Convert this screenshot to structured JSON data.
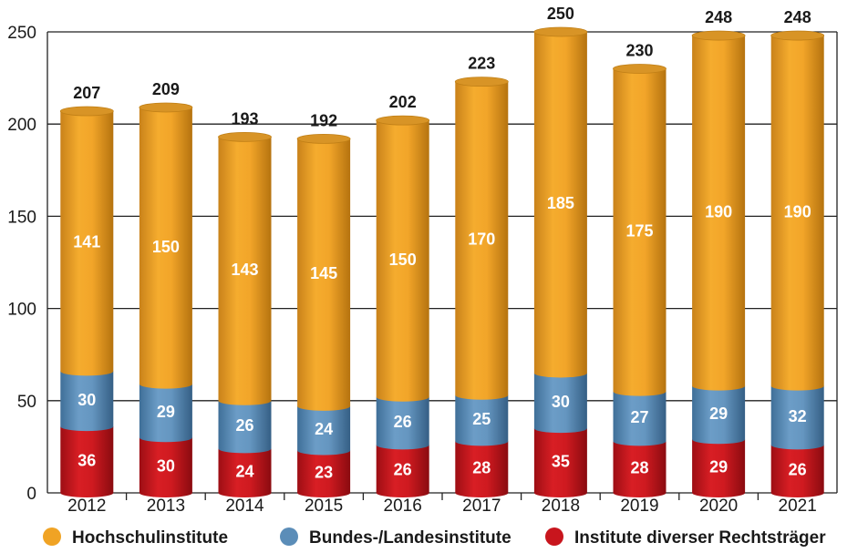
{
  "chart_data": {
    "type": "bar",
    "stacked": true,
    "style": "3d-cylinder",
    "categories": [
      "2012",
      "2013",
      "2014",
      "2015",
      "2016",
      "2017",
      "2018",
      "2019",
      "2020",
      "2021"
    ],
    "series": [
      {
        "name": "Institute diverser Rechtsträger",
        "values": [
          36,
          30,
          24,
          23,
          26,
          28,
          35,
          28,
          29,
          26
        ],
        "color": "#c8151d"
      },
      {
        "name": "Bundes-/Landesinstitute",
        "values": [
          30,
          29,
          26,
          24,
          26,
          25,
          30,
          27,
          29,
          32
        ],
        "color": "#5b8db8"
      },
      {
        "name": "Hochschulinstitute",
        "values": [
          141,
          150,
          143,
          145,
          150,
          170,
          185,
          175,
          190,
          190
        ],
        "color": "#f0a324"
      }
    ],
    "totals": [
      207,
      209,
      193,
      192,
      202,
      223,
      250,
      230,
      248,
      248
    ],
    "ylim": [
      0,
      250
    ],
    "yticks": [
      0,
      50,
      100,
      150,
      200,
      250
    ],
    "grid": true,
    "legend_position": "bottom",
    "legend_order": [
      "Hochschulinstitute",
      "Bundes-/Landesinstitute",
      "Institute diverser Rechtsträger"
    ]
  }
}
